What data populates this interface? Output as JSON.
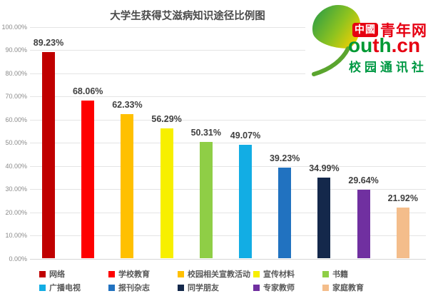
{
  "title": "大学生获得艾滋病知识途径比例图",
  "logo": {
    "leaf_icon": "ginkgo-leaf",
    "badge_text": "中國",
    "brand_text": "青年网",
    "domain_parts": [
      {
        "text": "ou",
        "color": "#009933"
      },
      {
        "text": "t",
        "color": "#e60012"
      },
      {
        "text": "h",
        "color": "#009933"
      },
      {
        "text": ".cn",
        "color": "#e60012"
      }
    ],
    "subtitle_text": "校园通讯社",
    "brand_color": "#e60012",
    "subtitle_color": "#009944"
  },
  "chart_data": {
    "type": "bar",
    "title": "大学生获得艾滋病知识途径比例图",
    "categories": [
      "网络",
      "学校教育",
      "校园相关宣教活动",
      "宣传材料",
      "书籍",
      "广播电视",
      "报刊杂志",
      "同学朋友",
      "专家教师",
      "家庭教育"
    ],
    "values": [
      89.23,
      68.06,
      62.33,
      56.29,
      50.31,
      49.07,
      39.23,
      34.99,
      29.64,
      21.92
    ],
    "value_labels": [
      "89.23%",
      "68.06%",
      "62.33%",
      "56.29%",
      "50.31%",
      "49.07%",
      "39.23%",
      "34.99%",
      "29.64%",
      "21.92%"
    ],
    "bar_colors": [
      "#c00000",
      "#fe0000",
      "#ffc000",
      "#f7ef00",
      "#8fce46",
      "#12ade4",
      "#2172c0",
      "#14284b",
      "#7030a0",
      "#f4bd8b"
    ],
    "xlabel": "",
    "ylabel": "",
    "ylim": [
      0,
      100
    ],
    "y_tick_labels": [
      "100.00%",
      "90.00%",
      "80.00%",
      "70.00%",
      "60.00%",
      "50.00%",
      "40.00%",
      "30.00%",
      "20.00%",
      "10.00%",
      "0.00%"
    ],
    "grid": true,
    "legend_position": "bottom",
    "legend_rows": 2,
    "legend_columns": 5
  }
}
